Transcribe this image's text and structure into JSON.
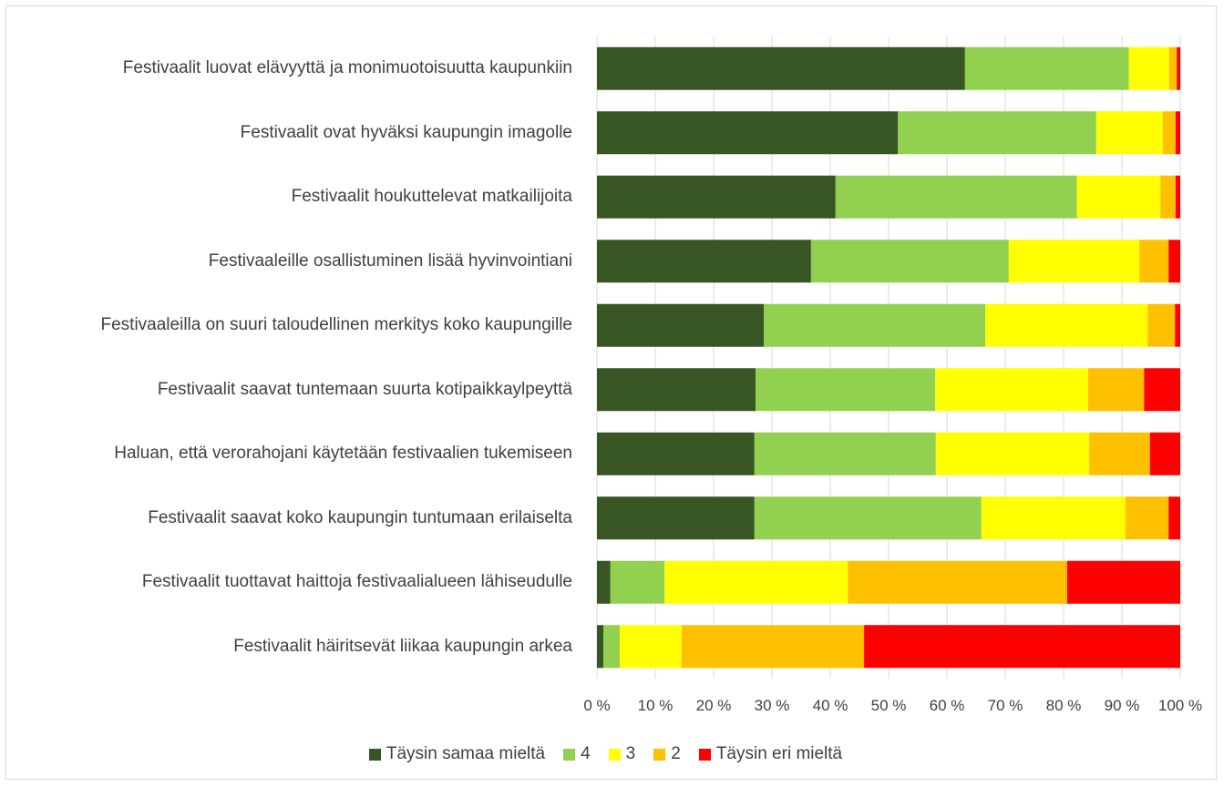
{
  "chart_data": {
    "type": "bar",
    "orientation": "horizontal",
    "stacked": true,
    "categories": [
      "Festivaalit luovat elävyyttä ja monimuotoisuutta kaupunkiin",
      "Festivaalit ovat hyväksi kaupungin imagolle",
      "Festivaalit houkuttelevat matkailijoita",
      "Festivaaleille osallistuminen lisää hyvinvointiani",
      "Festivaaleilla on suuri taloudellinen merkitys koko kaupungille",
      "Festivaalit saavat tuntemaan suurta kotipaikkaylpeyttä",
      "Haluan, että verorahojani käytetään festivaalien tukemiseen",
      "Festivaalit saavat koko kaupungin tuntumaan erilaiselta",
      "Festivaalit tuottavat haittoja festivaalialueen lähiseudulle",
      "Festivaalit häiritsevät liikaa kaupungin arkea"
    ],
    "series": [
      {
        "name": "Täysin samaa mieltä",
        "color": "#375623",
        "values": [
          63.1,
          51.6,
          40.9,
          36.7,
          28.6,
          27.2,
          27.0,
          27.0,
          2.3,
          1.1
        ]
      },
      {
        "name": "4",
        "color": "#92d050",
        "values": [
          28.1,
          34.0,
          41.4,
          33.9,
          38.0,
          30.8,
          31.1,
          38.9,
          9.3,
          2.8
        ]
      },
      {
        "name": "3",
        "color": "#ffff00",
        "values": [
          6.9,
          11.4,
          14.3,
          22.4,
          27.8,
          26.2,
          26.3,
          24.7,
          31.4,
          10.6
        ]
      },
      {
        "name": "2",
        "color": "#ffc000",
        "values": [
          1.3,
          2.2,
          2.6,
          5.0,
          4.7,
          9.6,
          10.4,
          7.4,
          37.6,
          31.3
        ]
      },
      {
        "name": "Täysin eri mieltä",
        "color": "#ff0000",
        "values": [
          0.6,
          0.8,
          0.8,
          2.0,
          0.9,
          6.2,
          5.2,
          2.0,
          19.4,
          54.2
        ]
      }
    ],
    "xlim": [
      0,
      100
    ],
    "xticks": [
      {
        "value": 0,
        "label": "0 %"
      },
      {
        "value": 10,
        "label": "10 %"
      },
      {
        "value": 20,
        "label": "20 %"
      },
      {
        "value": 30,
        "label": "30 %"
      },
      {
        "value": 40,
        "label": "40 %"
      },
      {
        "value": 50,
        "label": "50 %"
      },
      {
        "value": 60,
        "label": "60 %"
      },
      {
        "value": 70,
        "label": "70 %"
      },
      {
        "value": 80,
        "label": "80 %"
      },
      {
        "value": 90,
        "label": "90 %"
      },
      {
        "value": 100,
        "label": "100 %"
      }
    ],
    "grid": true,
    "legend": "bottom"
  }
}
